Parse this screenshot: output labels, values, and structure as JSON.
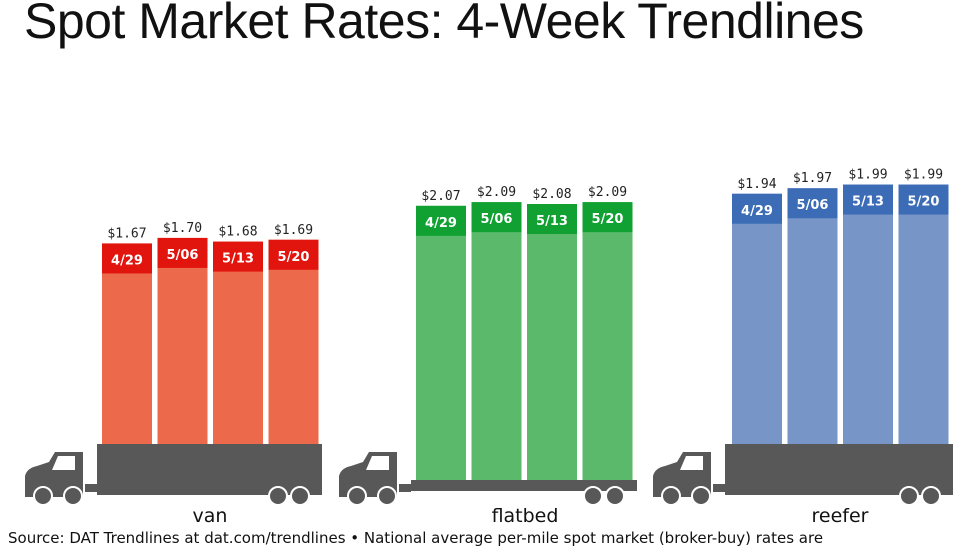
{
  "title": "Spot Market Rates: 4-Week Trendlines",
  "source": "Source: DAT Trendlines at dat.com/trendlines • National average per-mile spot market (broker-buy) rates are",
  "colors": {
    "van_bar": "#EC694B",
    "van_label": "#E2140E",
    "flatbed_bar": "#5AB96A",
    "flatbed_label": "#10A132",
    "reefer_bar": "#7795C7",
    "reefer_label": "#3D6CB6",
    "truck": "#585858"
  },
  "chart_data": {
    "type": "bar",
    "title": "Spot Market Rates: 4-Week Trendlines",
    "categories": [
      "4/29",
      "5/06",
      "5/13",
      "5/20"
    ],
    "value_prefix": "$",
    "series": [
      {
        "name": "van",
        "values": [
          1.67,
          1.7,
          1.68,
          1.69
        ],
        "labels": [
          "$1.67",
          "$1.70",
          "$1.68",
          "$1.69"
        ]
      },
      {
        "name": "flatbed",
        "values": [
          2.07,
          2.09,
          2.08,
          2.09
        ],
        "labels": [
          "$2.07",
          "$2.09",
          "$2.08",
          "$2.09"
        ]
      },
      {
        "name": "reefer",
        "values": [
          1.94,
          1.97,
          1.99,
          1.99
        ],
        "labels": [
          "$1.94",
          "$1.97",
          "$1.99",
          "$1.99"
        ]
      }
    ]
  }
}
